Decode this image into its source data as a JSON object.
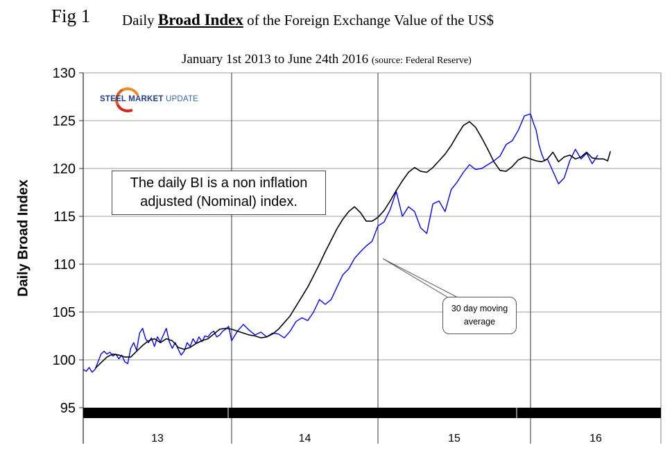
{
  "figure": {
    "label": "Fig 1",
    "title_prefix": "Daily ",
    "title_bold": "Broad Index",
    "title_suffix": " of the Foreign Exchange Value of the US$",
    "subtitle": "January 1st 2013 to June 24th 2016 ",
    "source": "(source: Federal Reserve)"
  },
  "logo": {
    "word1": "STEEL ",
    "word2": "MARKET ",
    "word3": "UPDATE"
  },
  "note_box": {
    "line1": "The daily BI is a non inflation",
    "line2": "adjusted (Nominal) index."
  },
  "callout": {
    "line1": "30 day moving",
    "line2": "average"
  },
  "colors": {
    "daily": "#0000ff",
    "moving_average": "#000000",
    "grid": "#bfbfbf",
    "year_bar": "#000000"
  },
  "chart_data": {
    "type": "line",
    "title": "Daily Broad Index of the Foreign Exchange Value of the US$",
    "subtitle": "January 1st 2013 to June 24th 2016 (source: Federal Reserve)",
    "xlabel": "",
    "ylabel": "Daily Broad Index",
    "ylim": [
      95,
      130
    ],
    "yticks": [
      95,
      100,
      105,
      110,
      115,
      120,
      125,
      130
    ],
    "xlim": [
      2013.0,
      2016.93
    ],
    "year_boundaries": [
      2013.0,
      2014.0,
      2015.0,
      2016.0,
      2016.93
    ],
    "categories": [
      "13",
      "14",
      "15",
      "16"
    ],
    "grid": true,
    "legend": "none",
    "annotations": [
      "The daily BI is a non inflation adjusted (Nominal) index.",
      "30 day moving average"
    ],
    "series": [
      {
        "name": "Daily Broad Index",
        "x": [
          2013.0,
          2013.02,
          2013.04,
          2013.06,
          2013.08,
          2013.1,
          2013.12,
          2013.14,
          2013.16,
          2013.18,
          2013.2,
          2013.22,
          2013.24,
          2013.26,
          2013.28,
          2013.3,
          2013.32,
          2013.34,
          2013.36,
          2013.38,
          2013.4,
          2013.42,
          2013.44,
          2013.46,
          2013.48,
          2013.5,
          2013.52,
          2013.54,
          2013.56,
          2013.58,
          2013.6,
          2013.62,
          2013.64,
          2013.66,
          2013.68,
          2013.7,
          2013.72,
          2013.74,
          2013.76,
          2013.78,
          2013.8,
          2013.82,
          2013.84,
          2013.86,
          2013.88,
          2013.9,
          2013.92,
          2013.94,
          2013.96,
          2013.98,
          2014.0,
          2014.04,
          2014.08,
          2014.12,
          2014.16,
          2014.2,
          2014.24,
          2014.28,
          2014.32,
          2014.36,
          2014.4,
          2014.44,
          2014.48,
          2014.52,
          2014.56,
          2014.6,
          2014.64,
          2014.68,
          2014.72,
          2014.76,
          2014.8,
          2014.84,
          2014.88,
          2014.92,
          2014.96,
          2015.0,
          2015.04,
          2015.08,
          2015.12,
          2015.16,
          2015.2,
          2015.24,
          2015.28,
          2015.32,
          2015.36,
          2015.4,
          2015.44,
          2015.48,
          2015.52,
          2015.56,
          2015.6,
          2015.64,
          2015.68,
          2015.72,
          2015.76,
          2015.8,
          2015.84,
          2015.88,
          2015.92,
          2015.96,
          2016.0,
          2016.02,
          2016.04,
          2016.06,
          2016.08,
          2016.1,
          2016.12,
          2016.16,
          2016.2,
          2016.24,
          2016.28,
          2016.32,
          2016.36,
          2016.4,
          2016.44,
          2016.48
        ],
        "values": [
          99.0,
          98.8,
          99.2,
          98.7,
          99.0,
          99.8,
          100.6,
          100.9,
          100.6,
          100.8,
          100.4,
          100.6,
          100.1,
          100.5,
          99.8,
          99.6,
          101.2,
          101.8,
          101.0,
          102.8,
          103.3,
          102.2,
          101.8,
          102.3,
          101.4,
          102.4,
          101.9,
          102.6,
          103.3,
          101.9,
          101.2,
          101.8,
          101.1,
          100.5,
          100.9,
          101.8,
          101.4,
          102.2,
          101.7,
          102.4,
          101.9,
          102.5,
          102.4,
          102.8,
          103.0,
          102.4,
          102.6,
          103.0,
          103.2,
          103.5,
          102.0,
          103.0,
          103.7,
          103.1,
          102.6,
          102.9,
          102.4,
          102.8,
          102.7,
          102.3,
          103.0,
          104.0,
          104.4,
          104.1,
          105.0,
          106.3,
          105.8,
          106.3,
          107.6,
          108.9,
          109.5,
          110.6,
          111.3,
          111.9,
          112.4,
          114.0,
          114.4,
          115.7,
          117.6,
          115.0,
          116.0,
          115.5,
          113.8,
          113.2,
          116.3,
          116.6,
          115.5,
          117.8,
          118.6,
          119.6,
          120.4,
          119.9,
          120.0,
          120.4,
          120.8,
          121.3,
          122.5,
          122.9,
          124.0,
          125.5,
          125.7,
          124.8,
          124.0,
          122.5,
          121.5,
          120.8,
          121.0,
          119.7,
          118.4,
          119.0,
          120.8,
          122.0,
          121.0,
          121.6,
          120.5,
          121.4
        ]
      },
      {
        "name": "30 day moving average",
        "x": [
          2013.08,
          2013.12,
          2013.16,
          2013.2,
          2013.24,
          2013.28,
          2013.32,
          2013.36,
          2013.4,
          2013.44,
          2013.48,
          2013.52,
          2013.56,
          2013.6,
          2013.64,
          2013.68,
          2013.72,
          2013.76,
          2013.8,
          2013.84,
          2013.88,
          2013.92,
          2013.96,
          2014.0,
          2014.04,
          2014.08,
          2014.12,
          2014.16,
          2014.2,
          2014.24,
          2014.28,
          2014.32,
          2014.36,
          2014.4,
          2014.44,
          2014.48,
          2014.52,
          2014.56,
          2014.6,
          2014.64,
          2014.68,
          2014.72,
          2014.76,
          2014.8,
          2014.84,
          2014.88,
          2014.92,
          2014.96,
          2015.0,
          2015.04,
          2015.08,
          2015.12,
          2015.16,
          2015.2,
          2015.24,
          2015.28,
          2015.32,
          2015.36,
          2015.4,
          2015.44,
          2015.48,
          2015.52,
          2015.56,
          2015.6,
          2015.64,
          2015.68,
          2015.72,
          2015.76,
          2015.8,
          2015.84,
          2015.88,
          2015.92,
          2015.96,
          2016.0,
          2016.04,
          2016.08,
          2016.12,
          2016.16,
          2016.2,
          2016.24,
          2016.28,
          2016.32,
          2016.36,
          2016.4,
          2016.44,
          2016.48,
          2016.52,
          2016.55,
          2016.57
        ],
        "values": [
          99.1,
          99.7,
          100.3,
          100.6,
          100.5,
          100.3,
          100.3,
          100.9,
          101.5,
          102.0,
          102.2,
          101.8,
          102.2,
          102.0,
          101.3,
          101.1,
          101.3,
          101.7,
          102.0,
          102.2,
          102.7,
          103.2,
          103.3,
          103.2,
          103.0,
          102.8,
          102.6,
          102.5,
          102.3,
          102.4,
          102.7,
          103.2,
          103.9,
          104.6,
          105.6,
          106.6,
          107.6,
          108.8,
          110.0,
          111.3,
          112.5,
          113.7,
          114.7,
          115.5,
          116.0,
          115.4,
          114.5,
          114.5,
          114.9,
          115.6,
          116.6,
          117.7,
          118.7,
          119.6,
          120.1,
          119.7,
          119.6,
          120.1,
          120.8,
          121.5,
          122.4,
          123.5,
          124.5,
          124.9,
          124.3,
          123.2,
          122.0,
          120.7,
          119.8,
          119.7,
          120.2,
          120.9,
          121.2,
          121.0,
          120.8,
          120.7,
          121.0,
          121.7,
          120.7,
          121.2,
          121.4,
          121.0,
          121.2,
          121.7,
          121.1,
          121.0,
          121.0,
          120.8,
          121.8
        ]
      }
    ]
  }
}
